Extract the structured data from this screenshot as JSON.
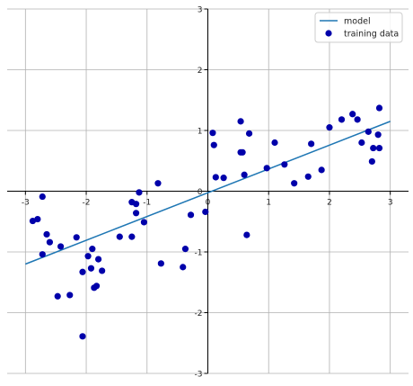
{
  "chart_data": {
    "type": "scatter",
    "title": "",
    "xlabel": "",
    "ylabel": "",
    "xlim": [
      -3.3,
      3.3
    ],
    "ylim": [
      -3,
      3
    ],
    "xticks": [
      -3,
      -2,
      -1,
      0,
      1,
      2,
      3
    ],
    "yticks": [
      -3,
      -2,
      -1,
      0,
      1,
      2,
      3
    ],
    "grid": true,
    "spines": "centered",
    "legend": {
      "position": "top-right",
      "entries": [
        "model",
        "training data"
      ]
    },
    "colors": {
      "model": "#1f77b4",
      "training_data": "#0000aa",
      "grid": "#b0b0b0",
      "axis": "#000000"
    },
    "series": [
      {
        "name": "model",
        "kind": "line",
        "x": [
          -3,
          3
        ],
        "y": [
          -1.2,
          1.15
        ]
      },
      {
        "name": "training data",
        "kind": "scatter",
        "points": [
          [
            -2.88,
            -0.49
          ],
          [
            -2.8,
            -0.46
          ],
          [
            -2.72,
            -0.09
          ],
          [
            -2.72,
            -1.04
          ],
          [
            -2.65,
            -0.71
          ],
          [
            -2.6,
            -0.84
          ],
          [
            -2.47,
            -1.73
          ],
          [
            -2.42,
            -0.91
          ],
          [
            -2.27,
            -1.71
          ],
          [
            -2.16,
            -0.76
          ],
          [
            -2.06,
            -1.33
          ],
          [
            -2.06,
            -2.39
          ],
          [
            -1.97,
            -1.07
          ],
          [
            -1.92,
            -1.27
          ],
          [
            -1.9,
            -0.95
          ],
          [
            -1.87,
            -1.59
          ],
          [
            -1.83,
            -1.56
          ],
          [
            -1.8,
            -1.12
          ],
          [
            -1.74,
            -1.31
          ],
          [
            -1.45,
            -0.75
          ],
          [
            -1.25,
            -0.75
          ],
          [
            -1.25,
            -0.18
          ],
          [
            -1.18,
            -0.21
          ],
          [
            -1.18,
            -0.36
          ],
          [
            -1.13,
            -0.02
          ],
          [
            -1.05,
            -0.51
          ],
          [
            -0.82,
            0.13
          ],
          [
            -0.77,
            -1.19
          ],
          [
            -0.41,
            -1.25
          ],
          [
            -0.37,
            -0.95
          ],
          [
            -0.28,
            -0.39
          ],
          [
            -0.04,
            -0.34
          ],
          [
            0.08,
            0.96
          ],
          [
            0.1,
            0.76
          ],
          [
            0.13,
            0.23
          ],
          [
            0.26,
            0.22
          ],
          [
            0.54,
            1.15
          ],
          [
            0.54,
            0.64
          ],
          [
            0.57,
            0.64
          ],
          [
            0.6,
            0.27
          ],
          [
            0.64,
            -0.72
          ],
          [
            0.68,
            0.95
          ],
          [
            0.97,
            0.38
          ],
          [
            1.1,
            0.8
          ],
          [
            1.26,
            0.44
          ],
          [
            1.42,
            0.13
          ],
          [
            1.65,
            0.24
          ],
          [
            1.7,
            0.78
          ],
          [
            1.87,
            0.35
          ],
          [
            2.0,
            1.05
          ],
          [
            2.2,
            1.18
          ],
          [
            2.38,
            1.27
          ],
          [
            2.46,
            1.18
          ],
          [
            2.53,
            0.8
          ],
          [
            2.64,
            0.98
          ],
          [
            2.7,
            0.49
          ],
          [
            2.72,
            0.71
          ],
          [
            2.8,
            0.93
          ],
          [
            2.82,
            0.71
          ],
          [
            2.82,
            1.37
          ]
        ]
      }
    ]
  }
}
